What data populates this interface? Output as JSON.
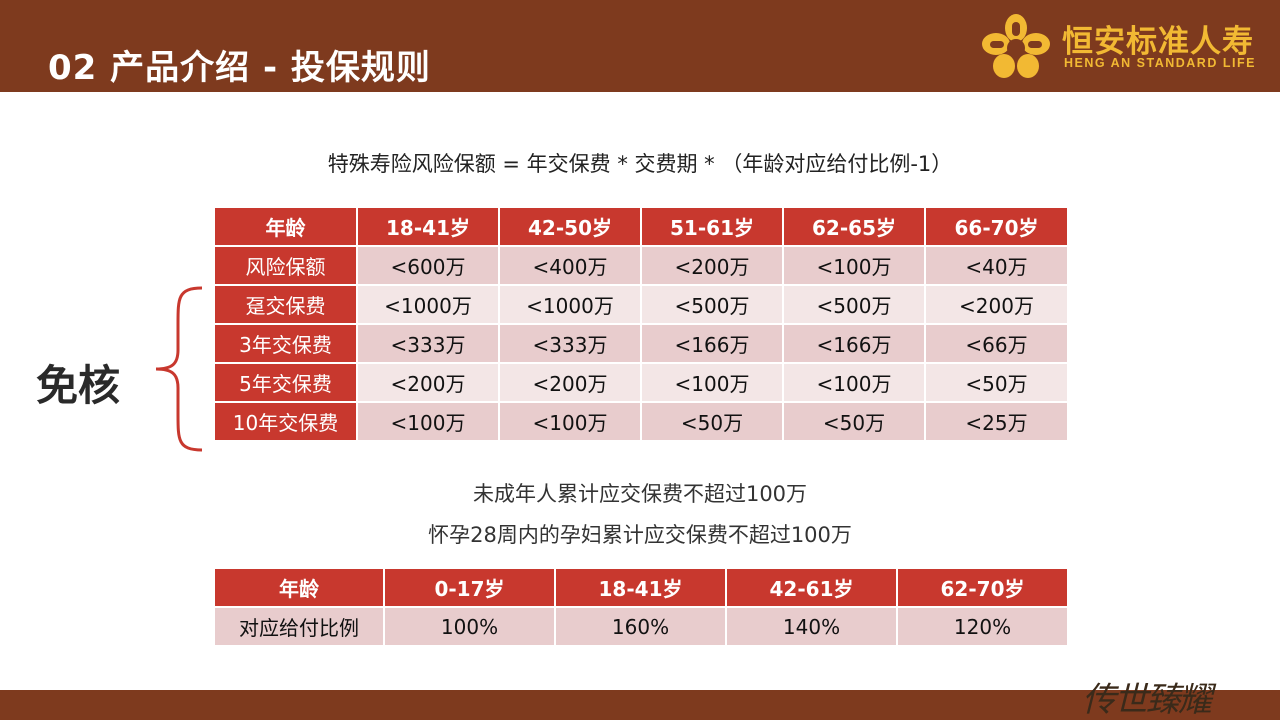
{
  "header": {
    "title": "02 产品介绍 - 投保规则",
    "logo_cn": "恒安标准人寿",
    "logo_en": "HENG AN STANDARD LIFE",
    "logo_icon": "knot-logo-icon",
    "bar_color": "#7e3a1e",
    "logo_color": "#f2b933"
  },
  "formula": "特殊寿险风险保额 = 年交保费 * 交费期 * （年龄对应给付比例-1）",
  "side_label": "免核",
  "table1": {
    "columns": [
      "年龄",
      "18-41岁",
      "42-50岁",
      "51-61岁",
      "62-65岁",
      "66-70岁"
    ],
    "rows": [
      {
        "label": "风险保额",
        "values": [
          "<600万",
          "<400万",
          "<200万",
          "<100万",
          "<40万"
        ]
      },
      {
        "label": "趸交保费",
        "values": [
          "<1000万",
          "<1000万",
          "<500万",
          "<500万",
          "<200万"
        ]
      },
      {
        "label": "3年交保费",
        "values": [
          "<333万",
          "<333万",
          "<166万",
          "<166万",
          "<66万"
        ]
      },
      {
        "label": "5年交保费",
        "values": [
          "<200万",
          "<200万",
          "<100万",
          "<100万",
          "<50万"
        ]
      },
      {
        "label": "10年交保费",
        "values": [
          "<100万",
          "<100万",
          "<50万",
          "<50万",
          "<25万"
        ]
      }
    ]
  },
  "notes": [
    "未成年人累计应交保费不超过100万",
    "怀孕28周内的孕妇累计应交保费不超过100万"
  ],
  "table2": {
    "columns": [
      "年龄",
      "0-17岁",
      "18-41岁",
      "42-61岁",
      "62-70岁"
    ],
    "rows": [
      {
        "label": "对应给付比例",
        "values": [
          "100%",
          "160%",
          "140%",
          "120%"
        ]
      }
    ]
  },
  "footer": {
    "signature": "传世臻耀",
    "bar_color": "#7e3a1e"
  },
  "accent_color": "#c8382e"
}
